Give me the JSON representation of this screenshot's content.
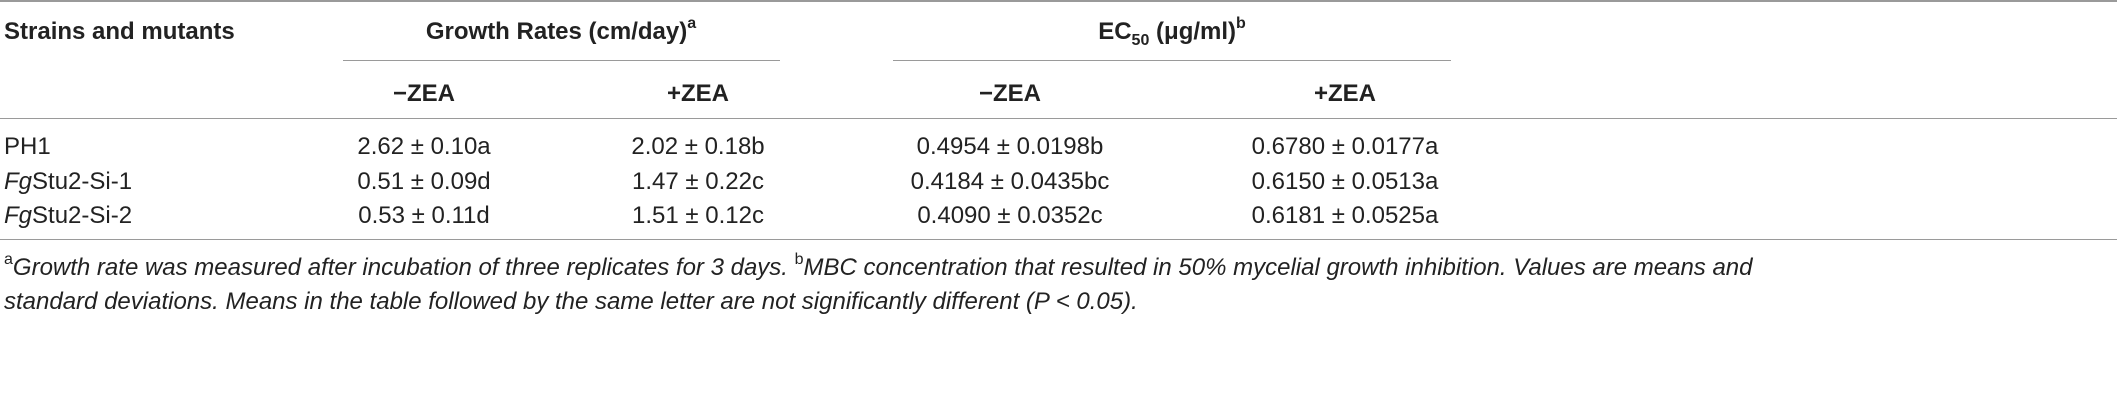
{
  "header": {
    "strains": "Strains and mutants",
    "growth_group": "Growth Rates (cm/day)",
    "growth_sup": "a",
    "ec_prefix": "EC",
    "ec_sub": "50",
    "ec_suffix": " (μg/ml)",
    "ec_sup": "b",
    "minus": "−ZEA",
    "plus": "+ZEA"
  },
  "rows": [
    {
      "prefix": "",
      "name": "PH1",
      "g_minus": "2.62 ± 0.10a",
      "g_plus": "2.02 ± 0.18b",
      "e_minus": "0.4954 ± 0.0198b",
      "e_plus": "0.6780 ± 0.0177a"
    },
    {
      "prefix": "Fg",
      "name": "Stu2-Si-1",
      "g_minus": "0.51 ± 0.09d",
      "g_plus": "1.47 ± 0.22c",
      "e_minus": "0.4184 ± 0.0435bc",
      "e_plus": "0.6150 ± 0.0513a"
    },
    {
      "prefix": "Fg",
      "name": "Stu2-Si-2",
      "g_minus": "0.53 ± 0.11d",
      "g_plus": "1.51 ± 0.12c",
      "e_minus": "0.4090 ± 0.0352c",
      "e_plus": "0.6181 ± 0.0525a"
    }
  ],
  "footnote": {
    "a_mark": "a",
    "a_text": "Growth rate was measured after incubation of three replicates for 3 days. ",
    "b_mark": "b",
    "b_text": "MBC concentration that resulted in 50% mycelial growth inhibition. Values are means and",
    "line2": "standard deviations. Means in the table followed by the same letter are not significantly different (P < 0.05)."
  }
}
